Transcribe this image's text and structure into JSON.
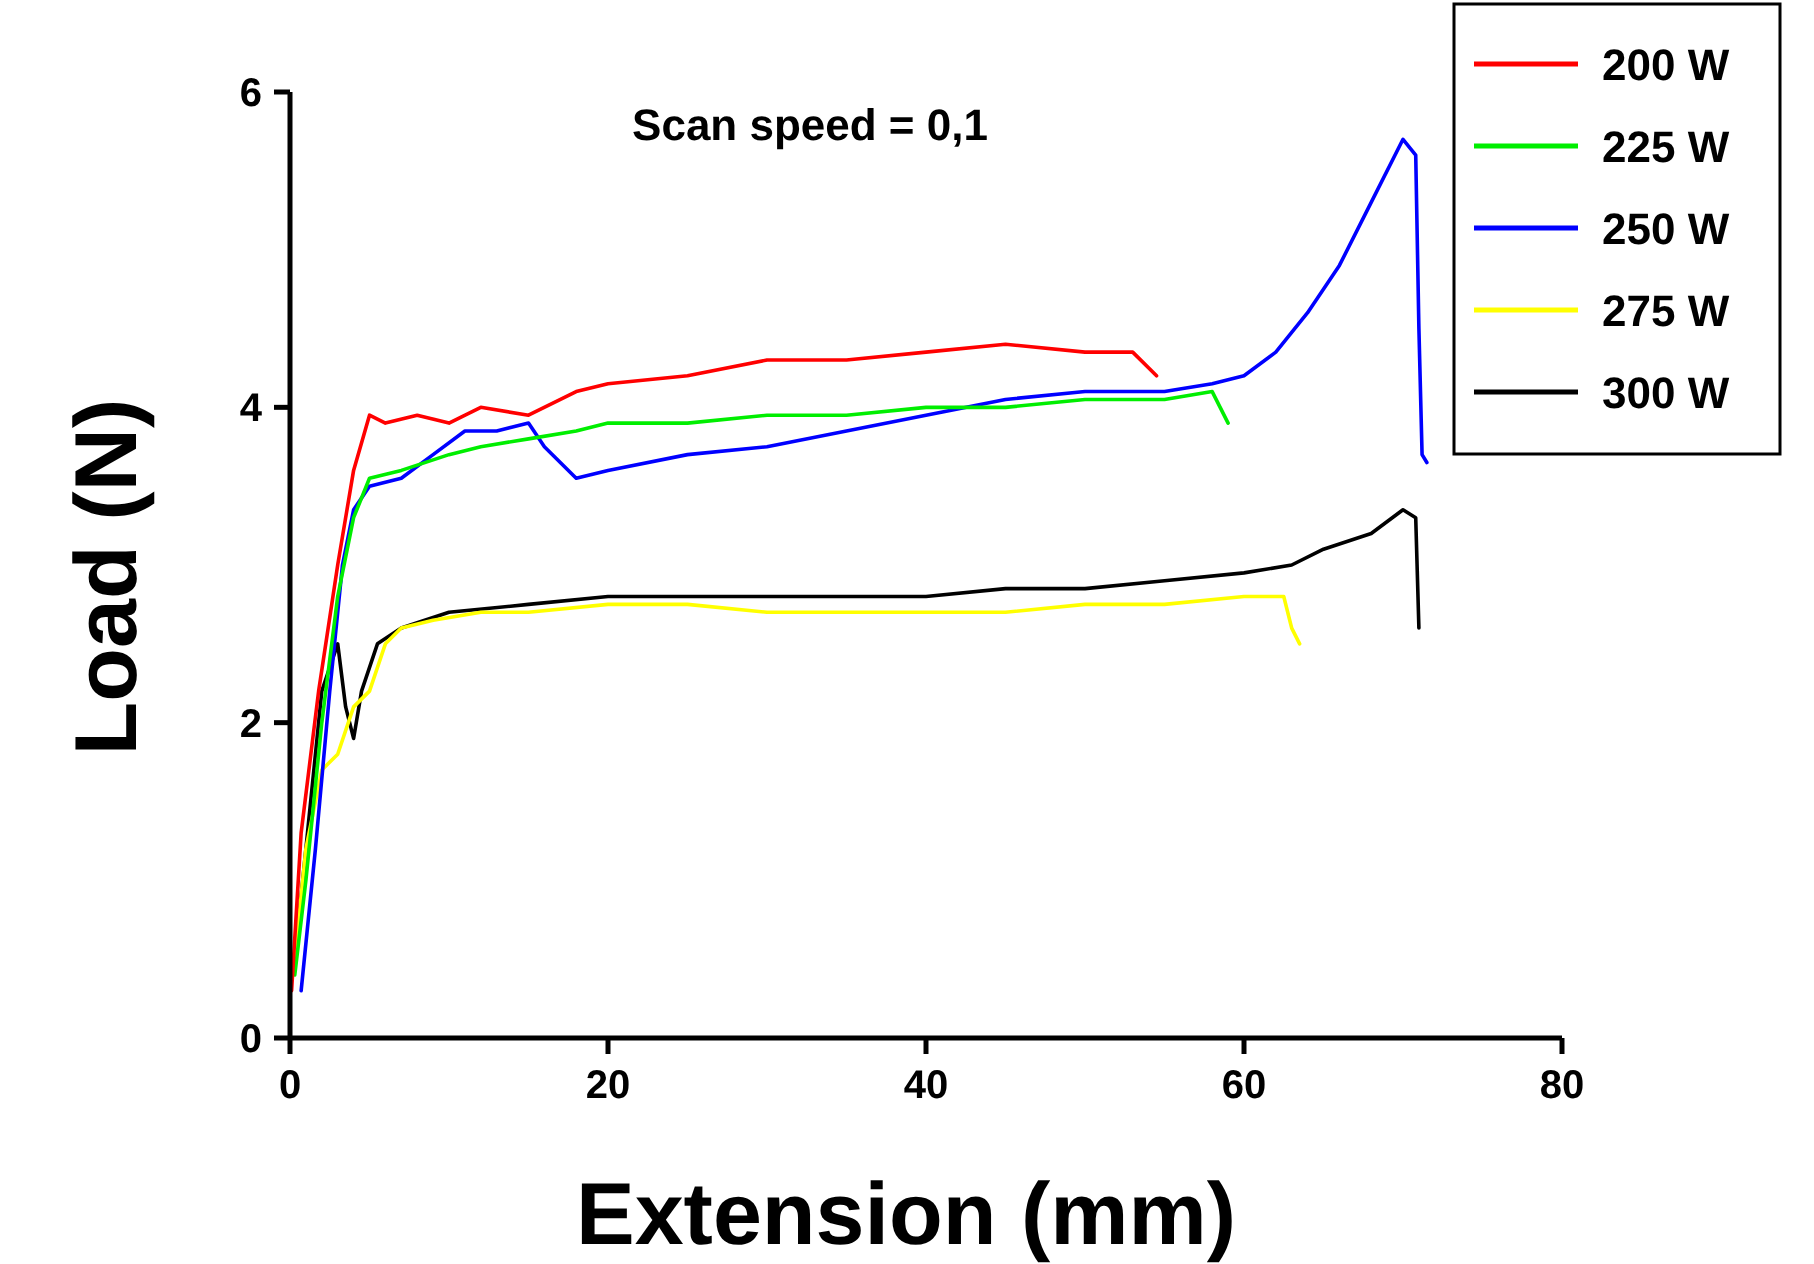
{
  "chart_data": {
    "type": "line",
    "xlabel": "Extension (mm)",
    "ylabel": "Load (N)",
    "annotations": [
      "Scan speed = 0,1"
    ],
    "xlim": [
      0,
      80
    ],
    "xticks": [
      0,
      20,
      40,
      60,
      80
    ],
    "ylim": [
      0,
      6
    ],
    "yticks": [
      0,
      2,
      4,
      6
    ],
    "grid": false,
    "legend": "top right",
    "marker": "none",
    "line_style": "solid",
    "series": [
      {
        "name": "200 W",
        "color": "#ff0000",
        "x": [
          0.1,
          0.7,
          1.8,
          3,
          4,
          5,
          6,
          8,
          10,
          12,
          15,
          18,
          20,
          25,
          30,
          35,
          40,
          45,
          50,
          53,
          54.5
        ],
        "values": [
          0.3,
          1.3,
          2.2,
          3.0,
          3.6,
          3.95,
          3.9,
          3.95,
          3.9,
          4.0,
          3.95,
          4.1,
          4.15,
          4.2,
          4.3,
          4.3,
          4.35,
          4.4,
          4.35,
          4.35,
          4.2
        ]
      },
      {
        "name": "225 W",
        "color": "#00ee00",
        "x": [
          0.3,
          1,
          2,
          3,
          4,
          5,
          7,
          10,
          12,
          15,
          18,
          20,
          25,
          30,
          35,
          40,
          45,
          50,
          55,
          58,
          59
        ],
        "values": [
          0.4,
          1.0,
          2.0,
          2.8,
          3.3,
          3.55,
          3.6,
          3.7,
          3.75,
          3.8,
          3.85,
          3.9,
          3.9,
          3.95,
          3.95,
          4.0,
          4.0,
          4.05,
          4.05,
          4.1,
          3.9
        ]
      },
      {
        "name": "250 W",
        "color": "#0000ff",
        "x": [
          0.7,
          1.6,
          2.5,
          3.3,
          4,
          5,
          7,
          9,
          11,
          13,
          15,
          16,
          18,
          20,
          25,
          30,
          35,
          40,
          45,
          50,
          55,
          58,
          60,
          62,
          64,
          66,
          68,
          70,
          70.8,
          71,
          71.2,
          71.5
        ],
        "values": [
          0.3,
          1.2,
          2.2,
          3.0,
          3.35,
          3.5,
          3.55,
          3.7,
          3.85,
          3.85,
          3.9,
          3.75,
          3.55,
          3.6,
          3.7,
          3.75,
          3.85,
          3.95,
          4.05,
          4.1,
          4.1,
          4.15,
          4.2,
          4.35,
          4.6,
          4.9,
          5.3,
          5.7,
          5.6,
          4.5,
          3.7,
          3.65
        ]
      },
      {
        "name": "275 W",
        "color": "#ffff00",
        "x": [
          0.3,
          1,
          2,
          3,
          4,
          5,
          6,
          7,
          9,
          12,
          15,
          20,
          25,
          30,
          35,
          40,
          45,
          50,
          55,
          60,
          62.5,
          63,
          63.5
        ],
        "values": [
          0.5,
          1.2,
          1.7,
          1.8,
          2.1,
          2.2,
          2.5,
          2.6,
          2.65,
          2.7,
          2.7,
          2.75,
          2.75,
          2.7,
          2.7,
          2.7,
          2.7,
          2.75,
          2.75,
          2.8,
          2.8,
          2.6,
          2.5
        ]
      },
      {
        "name": "300 W",
        "color": "#000000",
        "x": [
          0.3,
          1.1,
          2,
          3,
          3.5,
          4,
          4.5,
          5.5,
          7,
          10,
          15,
          20,
          25,
          30,
          35,
          40,
          45,
          50,
          55,
          60,
          63,
          65,
          68,
          70,
          70.8,
          71
        ],
        "values": [
          0.5,
          1.3,
          2.2,
          2.5,
          2.1,
          1.9,
          2.2,
          2.5,
          2.6,
          2.7,
          2.75,
          2.8,
          2.8,
          2.8,
          2.8,
          2.8,
          2.85,
          2.85,
          2.9,
          2.95,
          3.0,
          3.1,
          3.2,
          3.35,
          3.3,
          2.6
        ]
      }
    ]
  }
}
